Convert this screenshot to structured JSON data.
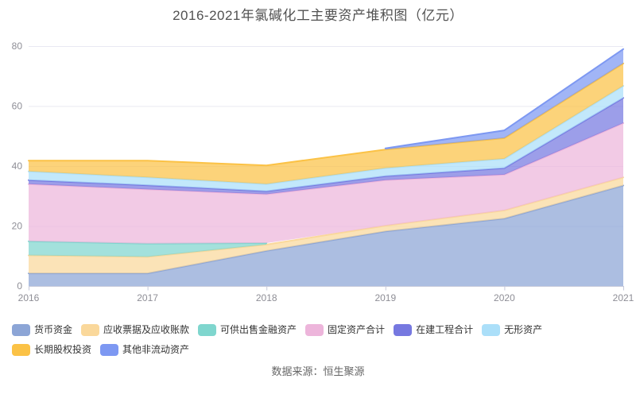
{
  "source": {
    "text": "数据来源：恒生聚源"
  },
  "colors": {
    "background": "#ffffff",
    "title_text": "#515151",
    "axis_label": "#8E8E96",
    "axis_line": "#C6C9DB",
    "gridline": "#E9E9F2",
    "legend_text": "#333333",
    "source_text": "#666666"
  },
  "chart_data": {
    "type": "area",
    "stacked": true,
    "title": "2016-2021年氯碱化工主要资产堆积图（亿元）",
    "unit": "亿元",
    "x": [
      "2016",
      "2017",
      "2018",
      "2019",
      "2020",
      "2021"
    ],
    "yticks": [
      0,
      20,
      40,
      60,
      80
    ],
    "ylim": [
      0,
      80
    ],
    "grid": true,
    "legend_position": "bottom",
    "fill_opacity": 0.72,
    "series": [
      {
        "name": "货币资金",
        "color": "#8CA5D6",
        "values": [
          4.2,
          4.2,
          11.7,
          18.2,
          22.5,
          33.5
        ]
      },
      {
        "name": "应收票据及应收账款",
        "color": "#FAD89B",
        "values": [
          6.0,
          5.5,
          2.1,
          1.9,
          2.7,
          2.7
        ]
      },
      {
        "name": "可供出售金融资产",
        "color": "#7FD6CE",
        "values": [
          4.7,
          4.4,
          0.5,
          null,
          null,
          null
        ]
      },
      {
        "name": "固定资产合计",
        "color": "#EDB5DB",
        "values": [
          19.1,
          18.1,
          16.3,
          15.2,
          11.9,
          18.1
        ]
      },
      {
        "name": "在建工程合计",
        "color": "#7678E0",
        "values": [
          1.3,
          1.4,
          1.0,
          1.3,
          2.2,
          8.4
        ]
      },
      {
        "name": "无形资产",
        "color": "#ABDFF9",
        "values": [
          2.9,
          2.6,
          2.4,
          2.7,
          3.1,
          4.0
        ]
      },
      {
        "name": "长期股权投资",
        "color": "#FBC246",
        "values": [
          3.6,
          5.6,
          6.2,
          6.2,
          6.9,
          7.5
        ]
      },
      {
        "name": "其他非流动资产",
        "color": "#7D98F2",
        "values": [
          null,
          null,
          null,
          0.4,
          2.6,
          4.8
        ]
      }
    ]
  }
}
